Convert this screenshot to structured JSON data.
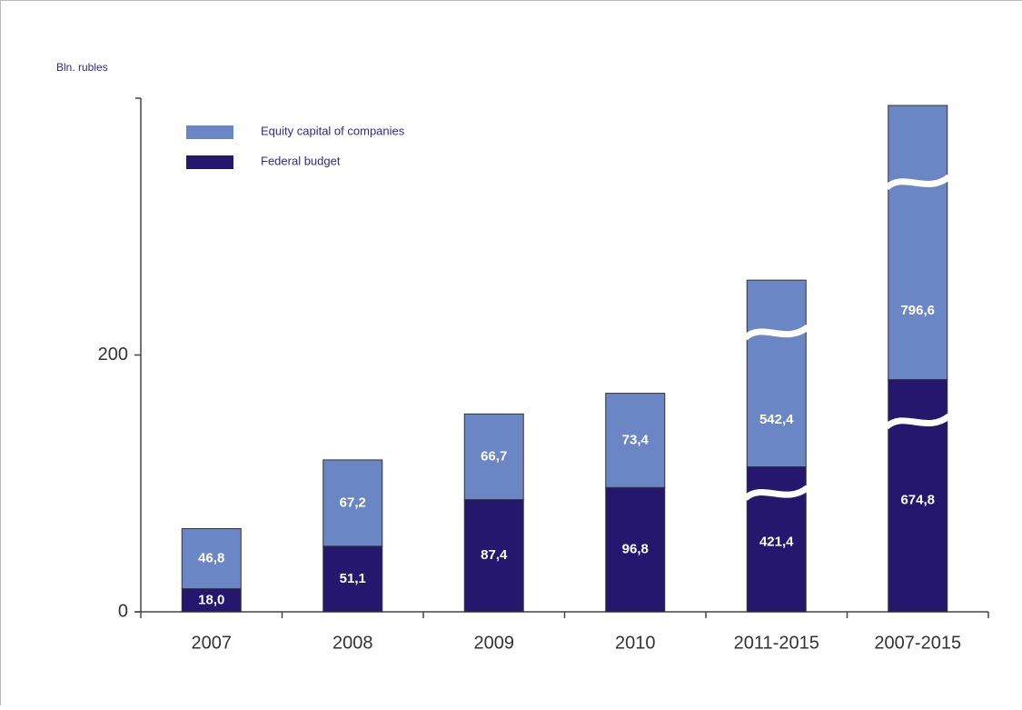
{
  "chart_data": {
    "type": "stacked_bar",
    "y_axis_label": "Bln. rubles",
    "categories": [
      "2007",
      "2008",
      "2009",
      "2010",
      "2011-2015",
      "2007-2015"
    ],
    "series": [
      {
        "name": "Federal budget",
        "color": "#26176e",
        "values": [
          18.0,
          51.1,
          87.4,
          96.8,
          421.4,
          674.8
        ],
        "value_labels": [
          "18,0",
          "51,1",
          "87,4",
          "96,8",
          "421,4",
          "674,8"
        ]
      },
      {
        "name": "Equity capital of companies",
        "color": "#6b86c4",
        "values": [
          46.8,
          67.2,
          66.7,
          73.4,
          542.4,
          796.6
        ],
        "value_labels": [
          "46,8",
          "67,2",
          "66,7",
          "73,4",
          "542,4",
          "796,6"
        ]
      }
    ],
    "ylim": [
      0,
      400
    ],
    "yticks": [
      0,
      200
    ],
    "axis_break": true,
    "legend": "top-left"
  }
}
